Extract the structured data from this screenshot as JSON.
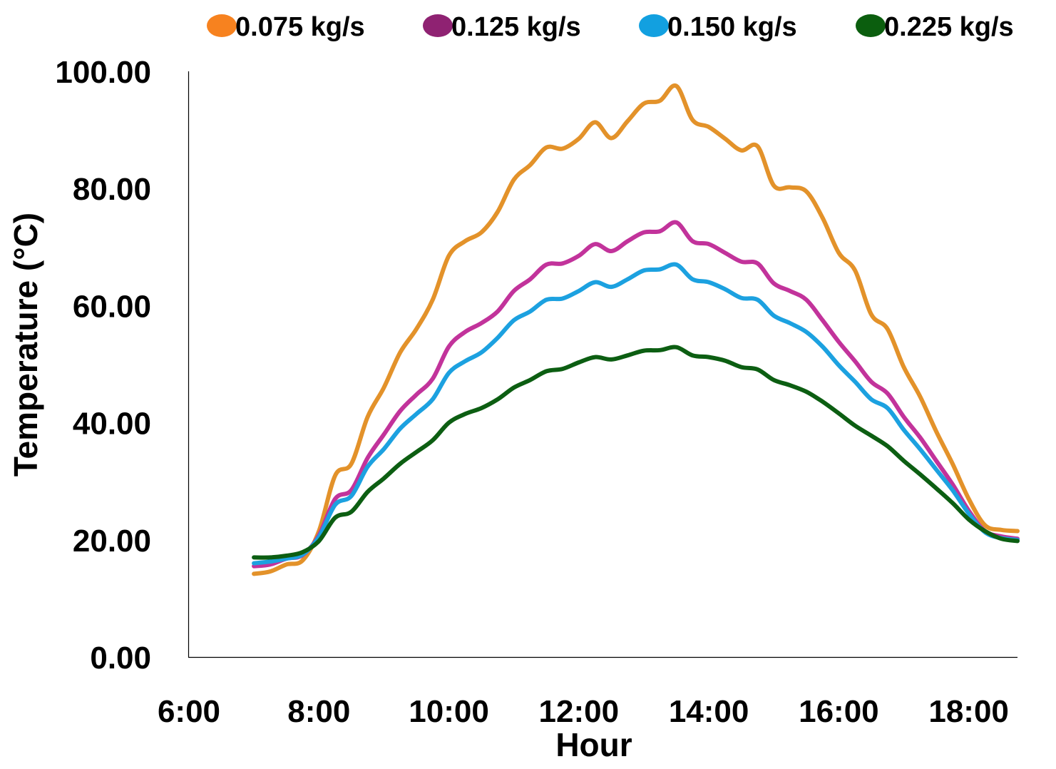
{
  "chart_data": {
    "type": "line",
    "title": "",
    "xlabel": "Hour",
    "ylabel": "Temperature (°C)",
    "ylim": [
      0,
      100
    ],
    "xlim": [
      "6:00",
      "18:45"
    ],
    "x_ticks": [
      "6:00",
      "8:00",
      "10:00",
      "12:00",
      "14:00",
      "16:00",
      "18:00"
    ],
    "y_ticks": [
      "0.00",
      "20.00",
      "40.00",
      "60.00",
      "80.00",
      "100.00"
    ],
    "grid": false,
    "legend_position": "top",
    "x": [
      "7:00",
      "7:15",
      "7:30",
      "7:45",
      "8:00",
      "8:15",
      "8:30",
      "8:45",
      "9:00",
      "9:15",
      "9:30",
      "9:45",
      "10:00",
      "10:15",
      "10:30",
      "10:45",
      "11:00",
      "11:15",
      "11:30",
      "11:45",
      "12:00",
      "12:15",
      "12:30",
      "12:45",
      "13:00",
      "13:15",
      "13:30",
      "13:45",
      "14:00",
      "14:15",
      "14:30",
      "14:45",
      "15:00",
      "15:15",
      "15:30",
      "15:45",
      "16:00",
      "16:15",
      "16:30",
      "16:45",
      "17:00",
      "17:15",
      "17:30",
      "17:45",
      "18:00",
      "18:15",
      "18:30",
      "18:45"
    ],
    "series": [
      {
        "name": "0.075 kg/s",
        "color": "#E3922A",
        "legend_marker_color": "#F7821F",
        "values": [
          14.2,
          14.6,
          15.8,
          16.5,
          21.5,
          31,
          33,
          41,
          46,
          52,
          56,
          61,
          68.5,
          71,
          72.5,
          76,
          81.5,
          84,
          87,
          86.8,
          88.5,
          91.3,
          88.6,
          91.5,
          94.5,
          95,
          97.5,
          91.7,
          90.5,
          88.5,
          86.5,
          87.2,
          80.5,
          80.2,
          79.5,
          75,
          69,
          66,
          58.5,
          56,
          49.5,
          44.5,
          38.5,
          33,
          27,
          22.5,
          21.7,
          21.5
        ]
      },
      {
        "name": "0.125 kg/s",
        "color": "#C2339B",
        "legend_marker_color": "#8F2272",
        "values": [
          15.5,
          15.8,
          16.8,
          17.4,
          20.8,
          27,
          28.5,
          34,
          38,
          42,
          44.8,
          47.5,
          53,
          55.5,
          57,
          59,
          62.5,
          64.5,
          67,
          67.2,
          68.5,
          70.5,
          69.3,
          71,
          72.5,
          72.7,
          74.2,
          71,
          70.5,
          69,
          67.5,
          67.2,
          63.8,
          62.5,
          61,
          57.5,
          53.8,
          50.5,
          47,
          45,
          41,
          37.5,
          33.5,
          29.5,
          25,
          21.5,
          20.6,
          20.2
        ]
      },
      {
        "name": "0.150 kg/s",
        "color": "#1CA1E0",
        "legend_marker_color": "#12A0E0",
        "values": [
          16,
          16.3,
          16.8,
          17.5,
          20.5,
          26,
          27.5,
          32.5,
          35.5,
          39,
          41.5,
          44,
          48.5,
          50.5,
          52,
          54.5,
          57.5,
          59,
          61,
          61.2,
          62.5,
          64,
          63.2,
          64.5,
          66,
          66.2,
          67,
          64.5,
          64,
          62.8,
          61.3,
          61,
          58.3,
          57,
          55.5,
          53,
          49.8,
          47,
          44,
          42.5,
          38.8,
          35.5,
          32,
          28.5,
          24.5,
          21.3,
          20.3,
          20
        ]
      },
      {
        "name": "0.225 kg/s",
        "color": "#0C5E12",
        "legend_marker_color": "#0B5E0E",
        "values": [
          17,
          17,
          17.3,
          17.9,
          19.8,
          23.8,
          24.8,
          28.2,
          30.5,
          33,
          35,
          37,
          40,
          41.5,
          42.5,
          44,
          46,
          47.3,
          48.8,
          49.2,
          50.3,
          51.2,
          50.8,
          51.5,
          52.3,
          52.4,
          52.9,
          51.5,
          51.2,
          50.6,
          49.5,
          49.1,
          47.3,
          46.4,
          45.3,
          43.6,
          41.6,
          39.5,
          37.8,
          36,
          33.5,
          31.2,
          28.8,
          26.3,
          23.5,
          21.5,
          20.2,
          19.8
        ]
      }
    ]
  }
}
